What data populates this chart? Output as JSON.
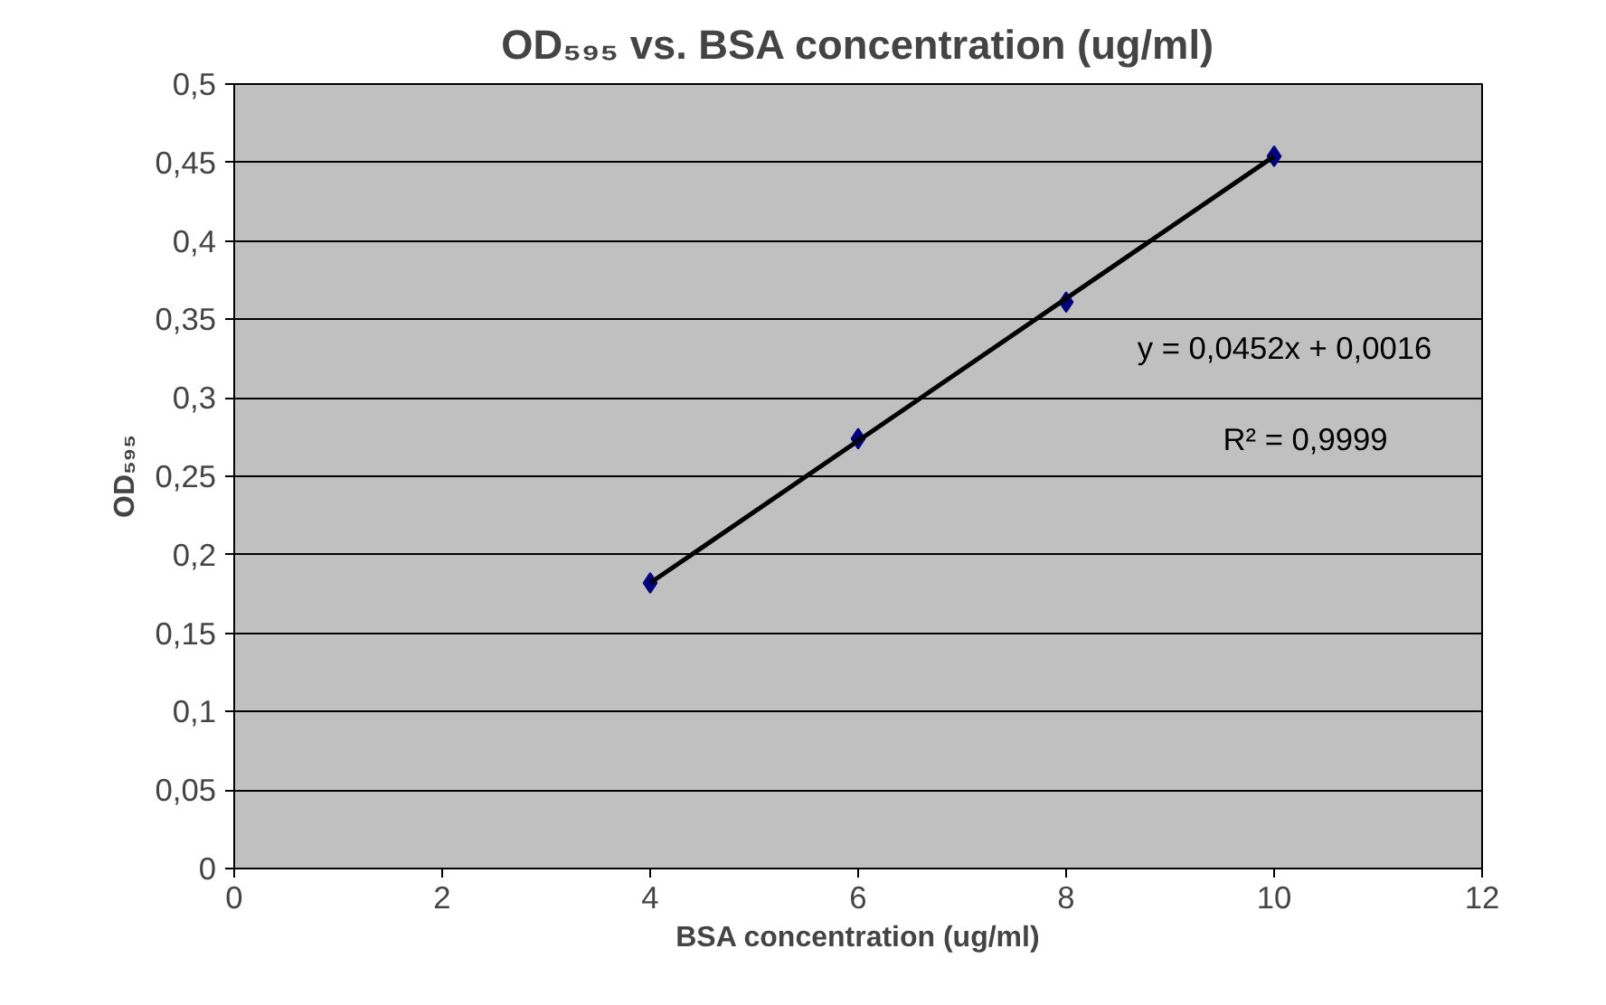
{
  "chart_data": {
    "type": "scatter",
    "title": "OD₅₉₅ vs. BSA concentration (ug/ml)",
    "xlabel": "BSA concentration (ug/ml)",
    "ylabel": "OD₅₉₅",
    "x": [
      4,
      6,
      8,
      10
    ],
    "series": [
      {
        "type": "scatter",
        "color": "#000080",
        "values": [
          0.182,
          0.274,
          0.361,
          0.454
        ],
        "marker": "diamond"
      },
      {
        "type": "line",
        "color": "#000000",
        "x": [
          4,
          10
        ],
        "values": [
          0.182,
          0.454
        ],
        "marker": "none",
        "line_style": "solid"
      }
    ],
    "annotations": [
      "y = 0,0452x + 0,0016",
      "R² = 0,9999"
    ],
    "xlim": [
      0,
      12
    ],
    "xticks": [
      0,
      2,
      4,
      6,
      8,
      10,
      12
    ],
    "ylim": [
      0,
      0.5
    ],
    "yticks": [
      0,
      {
        "value": 0.05,
        "label": "0,05"
      },
      {
        "value": 0.1,
        "label": "0,1"
      },
      {
        "value": 0.15,
        "label": "0,15"
      },
      {
        "value": 0.2,
        "label": "0,2"
      },
      {
        "value": 0.25,
        "label": "0,25"
      },
      {
        "value": 0.3,
        "label": "0,3"
      },
      {
        "value": 0.35,
        "label": "0,35"
      },
      {
        "value": 0.4,
        "label": "0,4"
      },
      {
        "value": 0.45,
        "label": "0,45"
      },
      {
        "value": 0.5,
        "label": "0,5"
      }
    ],
    "grid": "y"
  }
}
